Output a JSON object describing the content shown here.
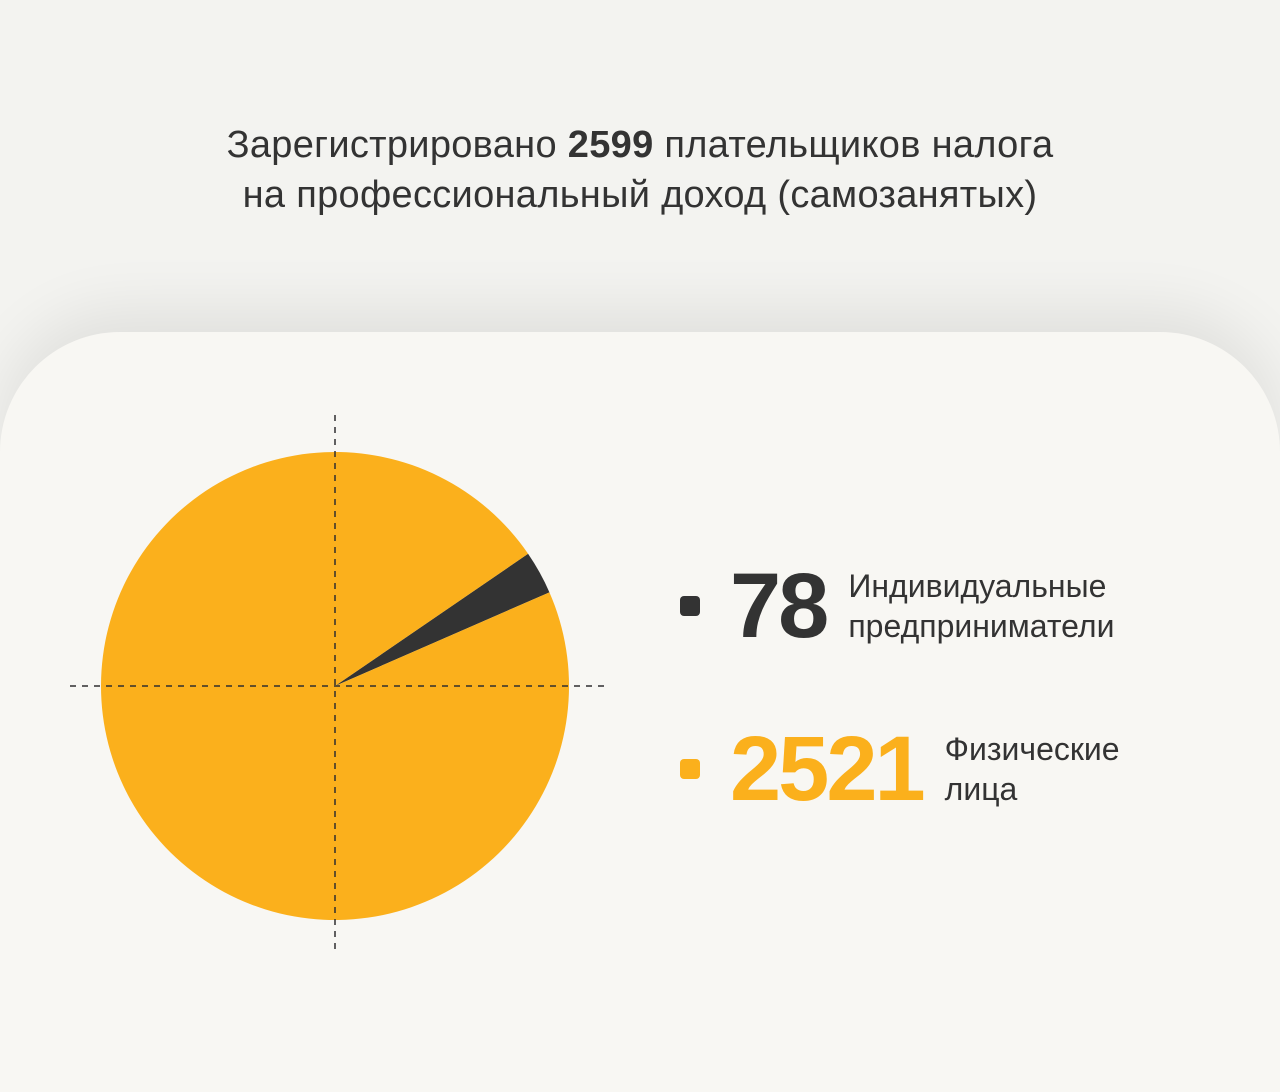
{
  "header": {
    "line1_before": "Зарегистрировано ",
    "line1_bold": "2599",
    "line1_after": " плательщиков налога",
    "line2": "на профессиональный доход (самозанятых)"
  },
  "chart_data": {
    "type": "pie",
    "total": 2599,
    "slices": [
      {
        "value": 78,
        "label_line1": "Индивидуальные",
        "label_line2": "предприниматели",
        "color": "#333333"
      },
      {
        "value": 2521,
        "label_line1": "Физические",
        "label_line2": "лица",
        "color": "#fbb01c"
      }
    ]
  }
}
